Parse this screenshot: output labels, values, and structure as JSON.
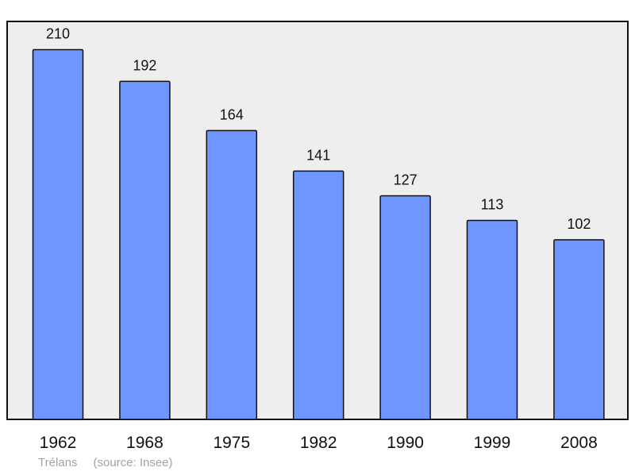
{
  "chart_data": {
    "type": "bar",
    "title": "",
    "xlabel": "",
    "ylabel": "",
    "categories": [
      "1962",
      "1968",
      "1975",
      "1982",
      "1990",
      "1999",
      "2008"
    ],
    "values": [
      210,
      192,
      164,
      141,
      127,
      113,
      102
    ],
    "ylim": [
      0,
      226
    ],
    "grid": false,
    "legend": "none",
    "data_labels": true
  },
  "caption": {
    "place": "Trélans",
    "source": "(source: Insee)"
  },
  "colors": {
    "bar": "#6f95ff",
    "plot_background": "#eeeeee",
    "caption_text": "#a3a3a3"
  }
}
